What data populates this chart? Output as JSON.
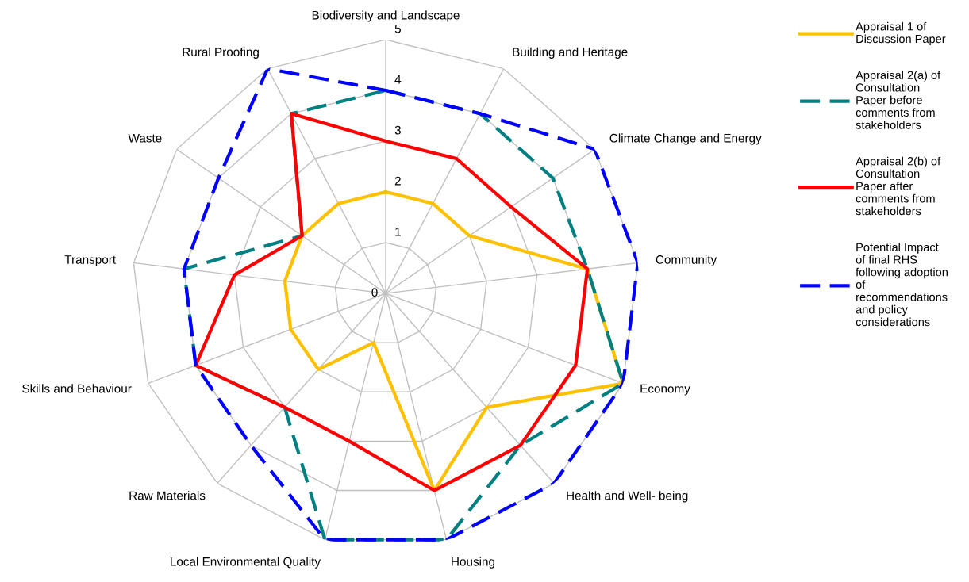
{
  "chart_data": {
    "type": "radar",
    "categories": [
      "Biodiversity and Landscape",
      "Building and Heritage",
      "Climate Change and Energy",
      "Community",
      "Economy",
      "Health and Well- being",
      "Housing",
      "Local Environmental Quality",
      "Raw Materials",
      "Skills and Behaviour",
      "Transport",
      "Waste",
      "Rural Proofing"
    ],
    "series": [
      {
        "name": "Appraisal 1 of\nDiscussion Paper",
        "color": "#ffc000",
        "line_style": "solid",
        "values": [
          2,
          2,
          2,
          4,
          5,
          3,
          4,
          1,
          2,
          2,
          2,
          2,
          2
        ]
      },
      {
        "name": "Appraisal 2(a) of\nConsultation\nPaper before\ncomments from\nstakeholders",
        "color": "#008080",
        "line_style": "dashed",
        "values": [
          4,
          4,
          4,
          4,
          5,
          4,
          5,
          5,
          3,
          4,
          4,
          2,
          4
        ]
      },
      {
        "name": "Appraisal 2(b) of\nConsultation\nPaper after\ncomments from\nstakeholders",
        "color": "#ff0000",
        "line_style": "solid",
        "values": [
          3,
          3,
          3,
          4,
          4,
          4,
          4,
          3,
          3,
          4,
          3,
          2,
          4
        ]
      },
      {
        "name": "Potential Impact\nof final RHS\nfollowing adoption\nof\nrecommendations\nand policy\nconsiderations",
        "color": "#0000ff",
        "line_style": "dashed",
        "values": [
          4,
          4,
          5,
          5,
          5,
          5,
          5,
          5,
          4,
          4,
          4,
          4,
          5
        ]
      }
    ],
    "ylim": [
      0,
      5
    ],
    "yticks": [
      0,
      1,
      2,
      3,
      4,
      5
    ],
    "grid": true,
    "legend": "right",
    "marker": "none"
  }
}
